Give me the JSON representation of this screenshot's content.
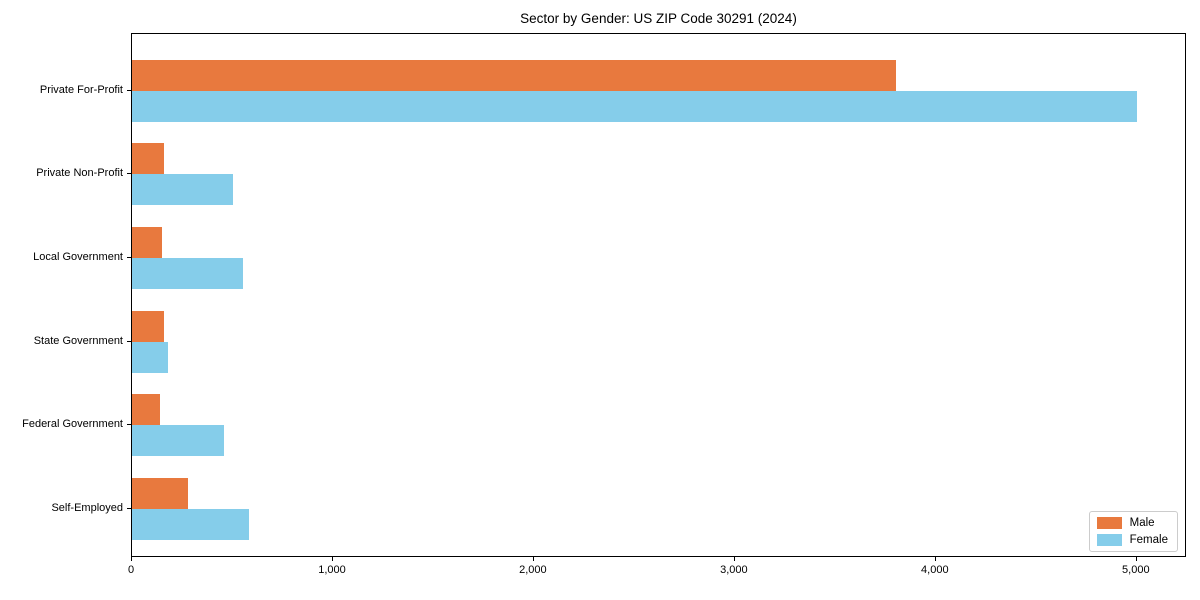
{
  "title": "Sector by Gender: US ZIP Code 30291 (2024)",
  "chart_data": {
    "type": "bar",
    "orientation": "horizontal",
    "title": "Sector by Gender: US ZIP Code 30291 (2024)",
    "xlabel": "",
    "ylabel": "",
    "categories": [
      "Private For-Profit",
      "Private Non-Profit",
      "Local Government",
      "State Government",
      "Federal Government",
      "Self-Employed"
    ],
    "series": [
      {
        "name": "Male",
        "color": "#e8793e",
        "values": [
          3800,
          160,
          150,
          160,
          140,
          280
        ]
      },
      {
        "name": "Female",
        "color": "#85cdea",
        "values": [
          5000,
          500,
          550,
          180,
          460,
          580
        ]
      }
    ],
    "xlim": [
      0,
      5250
    ],
    "x_ticks": [
      0,
      1000,
      2000,
      3000,
      4000,
      5000
    ],
    "x_tick_labels": [
      "0",
      "1,000",
      "2,000",
      "3,000",
      "4,000",
      "5,000"
    ],
    "grid": false,
    "legend_position": "lower right"
  }
}
